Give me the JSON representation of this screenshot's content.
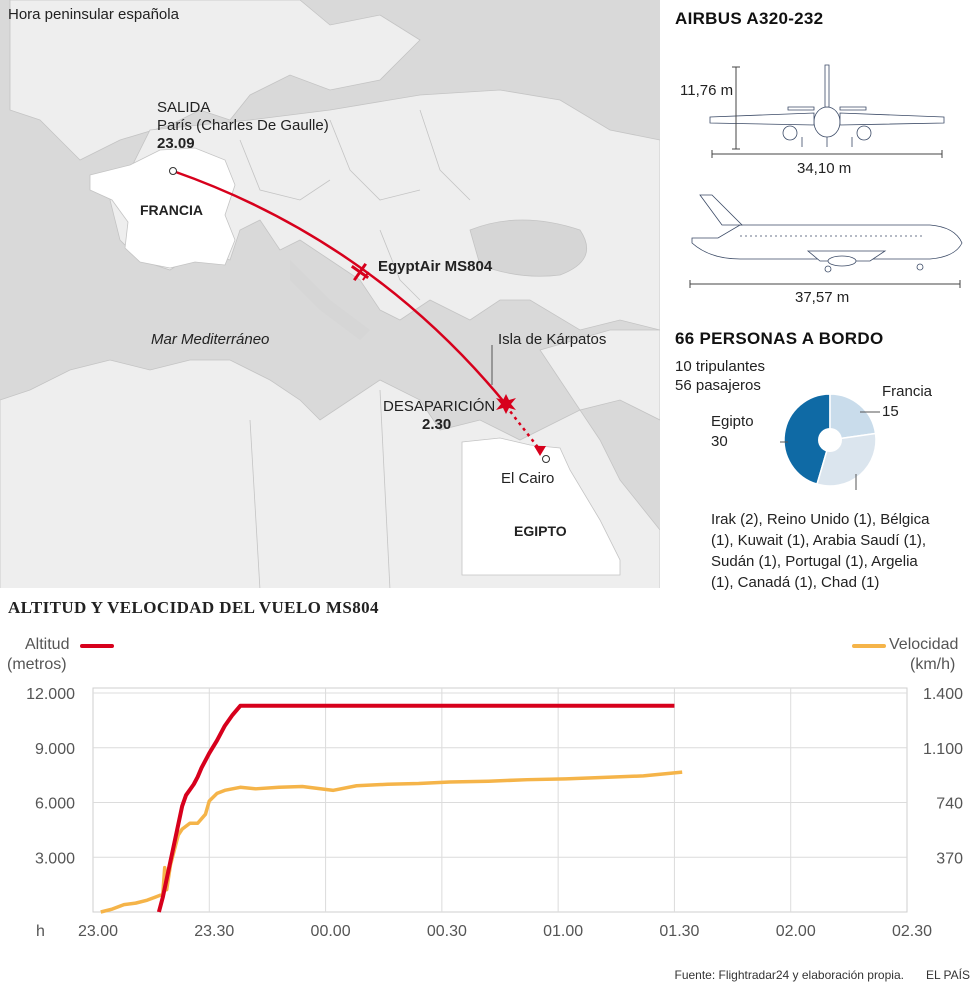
{
  "map": {
    "timezone_note": "Hora peninsular española",
    "departure": {
      "label": "SALIDA",
      "airport": "París (Charles De Gaulle)",
      "time": "23.09"
    },
    "france_label": "FRANCIA",
    "flight_label": "EgyptAir MS804",
    "sea_label": "Mar Mediterráneo",
    "island_label": "Isla de Kárpatos",
    "disappearance": {
      "label": "DESAPARICIÓN",
      "time": "2.30"
    },
    "cairo_label": "El Cairo",
    "egypt_label": "EGIPTO",
    "colors": {
      "route": "#d7001c",
      "land": "#f0f0f0",
      "sea": "#d6d6d6",
      "highlight": "#ffffff"
    }
  },
  "aircraft": {
    "title": "AIRBUS A320-232",
    "height": "11,76 m",
    "wingspan": "34,10 m",
    "length": "37,57 m"
  },
  "passengers": {
    "title": "66 PERSONAS A BORDO",
    "crew": "10 tripulantes",
    "pax": "56 pasajeros",
    "france_label": "Francia",
    "france_value": "15",
    "egypt_label": "Egipto",
    "egypt_value": "30",
    "others": [
      "Irak (2), Reino Unido (1), Bélgica",
      "(1), Kuwait (1), Arabia Saudí (1),",
      "Sudán (1), Portugal (1), Argelia",
      "(1), Canadá (1), Chad (1)"
    ],
    "colors": {
      "egypt": "#0f6aa5",
      "france": "#c9dceb",
      "other": "#dbe5ee"
    }
  },
  "chart_data": {
    "type": "line",
    "title": "ALTITUD Y VELOCIDAD DEL VUELO MS804",
    "x_axis_label": "h",
    "x_ticks": [
      "23.00",
      "23.30",
      "00.00",
      "00.30",
      "01.00",
      "01.30",
      "02.00",
      "02.30"
    ],
    "x_unit": "minutes after 23.00",
    "left_axis": {
      "label1": "Altitud",
      "label2": "(metros)",
      "ticks": [
        "12.000",
        "9.000",
        "6.000",
        "3.000"
      ],
      "range": [
        0,
        12000
      ]
    },
    "right_axis": {
      "label1": "Velocidad",
      "label2": "(km/h)",
      "ticks": [
        "1.400",
        "1.100",
        "740",
        "370"
      ]
    },
    "grid": true,
    "series": [
      {
        "name": "Altitud",
        "axis": "left",
        "color": "#d7001c",
        "x": [
          17,
          18,
          19,
          20,
          21,
          22,
          23,
          24,
          25,
          26,
          27,
          28,
          30,
          32,
          34,
          36,
          38,
          40,
          150
        ],
        "y": [
          0,
          800,
          1800,
          2800,
          3800,
          4800,
          5800,
          6400,
          6700,
          7000,
          7400,
          7900,
          8700,
          9400,
          10200,
          10800,
          11300,
          11300,
          11300
        ]
      },
      {
        "name": "Velocidad",
        "axis": "right",
        "color": "#f5b449",
        "x": [
          0,
          3,
          6,
          9,
          12,
          14,
          16,
          16.5,
          17,
          18,
          19,
          20,
          21,
          23,
          25,
          27,
          28,
          30,
          32,
          36,
          40,
          46,
          52,
          60,
          66,
          74,
          82,
          90,
          100,
          110,
          120,
          130,
          140,
          150
        ],
        "y": [
          0,
          20,
          50,
          60,
          80,
          100,
          120,
          300,
          150,
          320,
          420,
          520,
          560,
          600,
          600,
          660,
          750,
          800,
          820,
          840,
          830,
          840,
          845,
          820,
          850,
          860,
          865,
          875,
          880,
          890,
          895,
          905,
          915,
          940
        ]
      }
    ]
  },
  "footer": {
    "source": "Fuente: Flightradar24 y elaboración propia.",
    "brand": "EL PAÍS"
  }
}
